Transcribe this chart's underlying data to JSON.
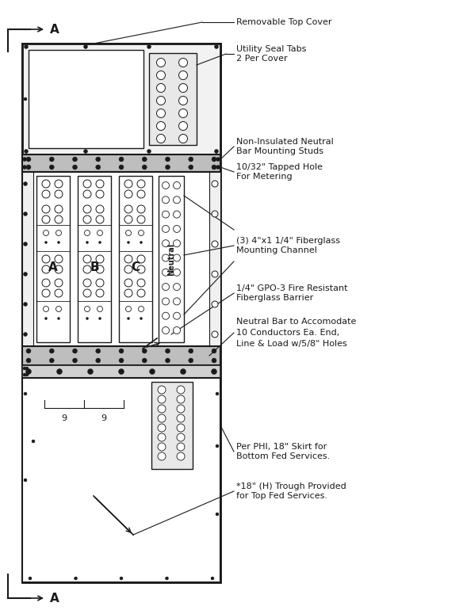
{
  "bg_color": "#ffffff",
  "line_color": "#1a1a1a",
  "gray_fill": "#cccccc",
  "light_gray": "#eeeeee",
  "white": "#ffffff",
  "annotations": {
    "removable_top_cover": "Removable Top Cover",
    "utility_seal_tabs": "Utility Seal Tabs\n2 Per Cover",
    "non_insulated": "Non-Insulated Neutral\nBar Mounting Studs",
    "tapped_hole": "10/32\" Tapped Hole\nFor Metering",
    "fiberglass_channel": "(3) 4\"x1 1/4\" Fiberglass\nMounting Channel",
    "gpo3": "1/4\" GPO-3 Fire Resistant\nFiberglass Barrier",
    "neutral_bar": "Neutral Bar to Accomodate\n10 Conductors Ea. End,\nLine & Load w/5/8\" Holes",
    "phi_skirt": "Per PHI, 18\" Skirt for\nBottom Fed Services.",
    "trough": "*18\" (H) Trough Provided\nfor Top Fed Services."
  }
}
